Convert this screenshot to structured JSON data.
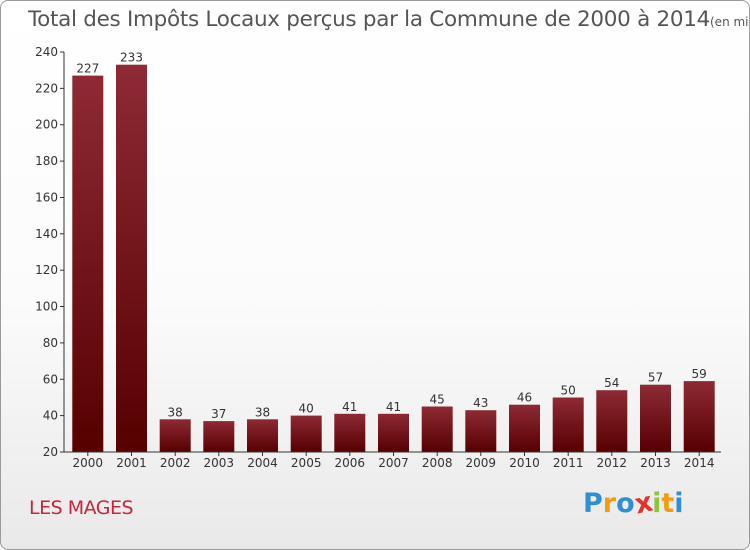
{
  "chart_data": {
    "type": "bar",
    "title": "Total des Impôts Locaux perçus par la Commune de 2000 à 2014",
    "title_unit": "(en milliers d'€)",
    "categories": [
      "2000",
      "2001",
      "2002",
      "2003",
      "2004",
      "2005",
      "2006",
      "2007",
      "2008",
      "2009",
      "2010",
      "2011",
      "2012",
      "2013",
      "2014"
    ],
    "values": [
      227,
      233,
      38,
      37,
      38,
      40,
      41,
      41,
      45,
      43,
      46,
      50,
      54,
      57,
      59
    ],
    "value_labels": [
      "227",
      "233",
      "38",
      "37",
      "38",
      "40",
      "41",
      "41",
      "45",
      "43",
      "46",
      "50",
      "54",
      "57",
      "59"
    ],
    "ylim": [
      20,
      240
    ],
    "yticks": [
      20,
      40,
      60,
      80,
      100,
      120,
      140,
      160,
      180,
      200,
      220,
      240
    ],
    "ytick_labels": [
      "20",
      "40",
      "60",
      "80",
      "100",
      "120",
      "140",
      "160",
      "180",
      "200",
      "220",
      "240"
    ],
    "xlabel": "",
    "ylabel": "",
    "grid": false,
    "colors": {
      "bar_top": "#8e2a35",
      "bar_bottom": "#560000",
      "axis": "#333333"
    }
  },
  "commune_name": "LES MAGES",
  "logo": {
    "letters": [
      "P",
      "r",
      "o",
      "x",
      "i",
      "t",
      "i"
    ],
    "colors": [
      "#2f8fd0",
      "#f39c12",
      "#2f8fd0",
      "#e0342c",
      "#8cc63f",
      "#f39c12",
      "#2f8fd0"
    ]
  }
}
